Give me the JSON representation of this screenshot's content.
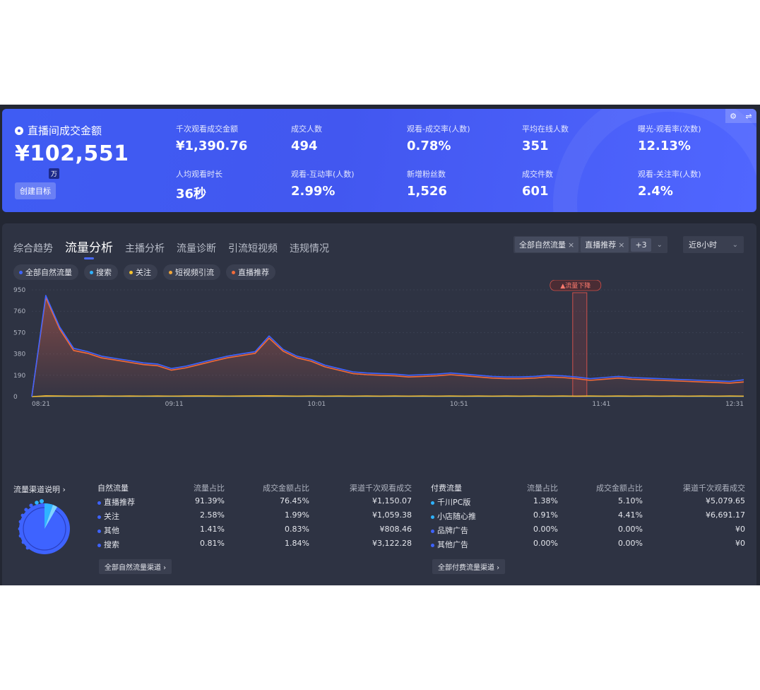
{
  "banner": {
    "gmv_label": "直播间成交金额",
    "gmv_value": "¥102,551",
    "gmv_unit": "万",
    "create_goal": "创建目标",
    "metrics": [
      {
        "label": "千次观看成交金额",
        "value": "¥1,390.76"
      },
      {
        "label": "成交人数",
        "value": "494"
      },
      {
        "label": "观看-成交率(人数)",
        "value": "0.78%"
      },
      {
        "label": "平均在线人数",
        "value": "351"
      },
      {
        "label": "曝光-观看率(次数)",
        "value": "12.13%"
      },
      {
        "label": "人均观看时长",
        "value": "36秒"
      },
      {
        "label": "观看-互动率(人数)",
        "value": "2.99%"
      },
      {
        "label": "新增粉丝数",
        "value": "1,526"
      },
      {
        "label": "成交件数",
        "value": "601"
      },
      {
        "label": "观看-关注率(人数)",
        "value": "2.4%"
      }
    ],
    "tool_icons": [
      "gear-icon",
      "swap-icon"
    ]
  },
  "tabs": [
    {
      "label": "综合趋势",
      "active": false
    },
    {
      "label": "流量分析",
      "active": true
    },
    {
      "label": "主播分析",
      "active": false
    },
    {
      "label": "流量诊断",
      "active": false
    },
    {
      "label": "引流短视频",
      "active": false
    },
    {
      "label": "违规情况",
      "active": false
    }
  ],
  "filters": {
    "chips": [
      "全部自然流量",
      "直播推荐"
    ],
    "more": "+3",
    "time_range": "近8小时"
  },
  "legend": [
    {
      "label": "全部自然流量",
      "color": "#3e63ff"
    },
    {
      "label": "搜索",
      "color": "#2fb3ff"
    },
    {
      "label": "关注",
      "color": "#f5c32f"
    },
    {
      "label": "短视频引流",
      "color": "#f0a63a"
    },
    {
      "label": "直播推荐",
      "color": "#f26b3a"
    }
  ],
  "chart_data": {
    "type": "line",
    "xlabel": "",
    "ylabel": "",
    "ylim": [
      0,
      950
    ],
    "yticks": [
      "950",
      "760",
      "570",
      "380",
      "190",
      "0"
    ],
    "xticks": [
      "08:21",
      "09:11",
      "10:01",
      "10:51",
      "11:41",
      "12:31"
    ],
    "annotation": "▲流量下降",
    "x": [
      "08:21",
      "08:26",
      "08:31",
      "08:36",
      "08:41",
      "08:46",
      "08:51",
      "08:56",
      "09:01",
      "09:06",
      "09:11",
      "09:16",
      "09:21",
      "09:26",
      "09:31",
      "09:36",
      "09:41",
      "09:46",
      "09:51",
      "09:56",
      "10:01",
      "10:06",
      "10:11",
      "10:16",
      "10:21",
      "10:26",
      "10:31",
      "10:36",
      "10:41",
      "10:46",
      "10:51",
      "10:56",
      "11:01",
      "11:06",
      "11:11",
      "11:16",
      "11:21",
      "11:26",
      "11:31",
      "11:36",
      "11:41",
      "11:46",
      "11:51",
      "11:56",
      "12:01",
      "12:06",
      "12:11",
      "12:16",
      "12:21",
      "12:26",
      "12:31",
      "12:34"
    ],
    "series": [
      {
        "name": "全部自然流量",
        "color": "#3e63ff",
        "values": [
          0,
          900,
          620,
          430,
          400,
          360,
          340,
          320,
          300,
          290,
          250,
          270,
          300,
          330,
          360,
          380,
          400,
          540,
          420,
          360,
          330,
          280,
          250,
          220,
          210,
          205,
          200,
          190,
          195,
          200,
          210,
          200,
          190,
          180,
          175,
          175,
          180,
          190,
          185,
          175,
          160,
          170,
          180,
          170,
          165,
          160,
          155,
          150,
          145,
          140,
          135,
          150
        ]
      },
      {
        "name": "直播推荐",
        "color": "#f26b3a",
        "values": [
          0,
          880,
          600,
          410,
          385,
          345,
          325,
          305,
          285,
          275,
          235,
          255,
          285,
          315,
          345,
          365,
          385,
          520,
          405,
          345,
          315,
          265,
          235,
          205,
          195,
          190,
          185,
          175,
          180,
          185,
          195,
          185,
          175,
          165,
          160,
          160,
          165,
          175,
          170,
          160,
          145,
          155,
          165,
          155,
          150,
          145,
          140,
          135,
          130,
          125,
          120,
          130
        ]
      },
      {
        "name": "关注",
        "color": "#f5c32f",
        "values": [
          0,
          8,
          6,
          5,
          5,
          6,
          5,
          6,
          5,
          6,
          5,
          6,
          7,
          6,
          5,
          6,
          7,
          8,
          6,
          5,
          6,
          5,
          6,
          5,
          6,
          5,
          6,
          5,
          6,
          5,
          6,
          5,
          6,
          5,
          6,
          5,
          6,
          5,
          6,
          5,
          6,
          5,
          6,
          5,
          6,
          5,
          6,
          5,
          6,
          5,
          6,
          5
        ]
      },
      {
        "name": "短视频引流",
        "color": "#f0a63a",
        "values": [
          0,
          3,
          4,
          3,
          4,
          3,
          4,
          3,
          4,
          3,
          4,
          3,
          4,
          3,
          4,
          3,
          4,
          3,
          4,
          3,
          4,
          3,
          4,
          3,
          4,
          3,
          4,
          3,
          4,
          3,
          4,
          3,
          4,
          3,
          4,
          3,
          4,
          3,
          4,
          3,
          4,
          3,
          4,
          3,
          4,
          3,
          4,
          3,
          4,
          3,
          4,
          3
        ]
      },
      {
        "name": "搜索",
        "color": "#2fb3ff",
        "values": [
          0,
          2,
          2,
          2,
          2,
          2,
          2,
          2,
          2,
          2,
          2,
          2,
          2,
          2,
          2,
          2,
          2,
          2,
          2,
          2,
          2,
          2,
          2,
          2,
          2,
          2,
          2,
          2,
          2,
          2,
          2,
          2,
          2,
          2,
          2,
          2,
          2,
          2,
          2,
          2,
          2,
          2,
          2,
          2,
          2,
          2,
          2,
          2,
          2,
          2,
          2,
          2
        ]
      }
    ]
  },
  "explain_label": "流量渠道说明",
  "natural_table": {
    "headers": [
      "自然流量",
      "流量占比",
      "成交金额占比",
      "渠道千次观看成交"
    ],
    "rows": [
      {
        "name": "直播推荐",
        "share": "91.39%",
        "gmv_share": "76.45%",
        "gpm": "¥1,150.07",
        "color": "#3e63ff"
      },
      {
        "name": "关注",
        "share": "2.58%",
        "gmv_share": "1.99%",
        "gpm": "¥1,059.38",
        "color": "#3e63ff"
      },
      {
        "name": "其他",
        "share": "1.41%",
        "gmv_share": "0.83%",
        "gpm": "¥808.46",
        "color": "#3e63ff"
      },
      {
        "name": "搜索",
        "share": "0.81%",
        "gmv_share": "1.84%",
        "gpm": "¥3,122.28",
        "color": "#3e63ff"
      }
    ],
    "all_button": "全部自然流量渠道"
  },
  "paid_table": {
    "headers": [
      "付费流量",
      "流量占比",
      "成交金额占比",
      "渠道千次观看成交"
    ],
    "rows": [
      {
        "name": "千川PC版",
        "share": "1.38%",
        "gmv_share": "5.10%",
        "gpm": "¥5,079.65",
        "color": "#2fb3ff"
      },
      {
        "name": "小店随心推",
        "share": "0.91%",
        "gmv_share": "4.41%",
        "gpm": "¥6,691.17",
        "color": "#2fb3ff"
      },
      {
        "name": "品牌广告",
        "share": "0.00%",
        "gmv_share": "0.00%",
        "gpm": "¥0",
        "color": "#3e63ff"
      },
      {
        "name": "其他广告",
        "share": "0.00%",
        "gmv_share": "0.00%",
        "gpm": "¥0",
        "color": "#3e63ff"
      }
    ],
    "all_button": "全部付费流量渠道"
  }
}
